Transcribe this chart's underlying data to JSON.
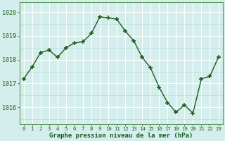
{
  "hours": [
    0,
    1,
    2,
    3,
    4,
    5,
    6,
    7,
    8,
    9,
    10,
    11,
    12,
    13,
    14,
    15,
    16,
    17,
    18,
    19,
    20,
    21,
    22,
    23
  ],
  "pressure": [
    1017.2,
    1017.7,
    1018.3,
    1018.4,
    1018.1,
    1018.5,
    1018.7,
    1018.75,
    1019.1,
    1019.8,
    1019.75,
    1019.7,
    1019.2,
    1018.8,
    1018.1,
    1017.65,
    1016.85,
    1016.2,
    1015.8,
    1016.1,
    1015.75,
    1017.2,
    1017.3,
    1018.1
  ],
  "line_color": "#1a5c1a",
  "marker_color": "#1a5c1a",
  "bg_color": "#d4eeed",
  "grid_color_major": "#ffffff",
  "grid_color_minor": "#bcdcdc",
  "xlabel": "Graphe pression niveau de la mer (hPa)",
  "xlabel_color": "#1a5c1a",
  "tick_color": "#1a5c1a",
  "ylim": [
    1015.3,
    1020.4
  ],
  "yticks": [
    1016,
    1017,
    1018,
    1019,
    1020
  ],
  "border_color": "#5a9a5a"
}
